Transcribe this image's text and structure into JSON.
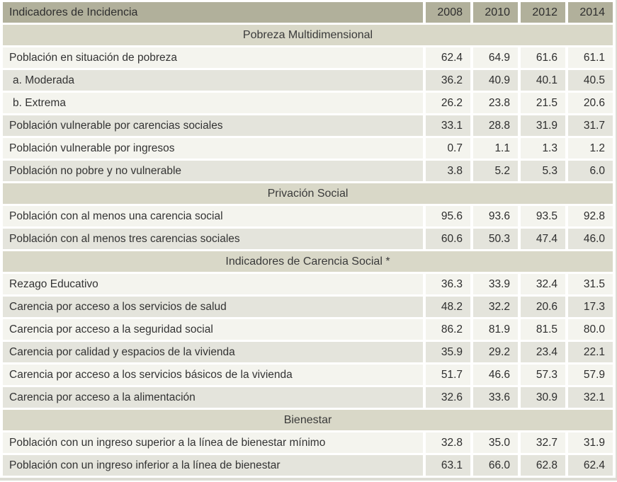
{
  "chart_data": {
    "type": "table",
    "title": "Indicadores de Incidencia",
    "columns": [
      "2008",
      "2010",
      "2012",
      "2014"
    ],
    "sections": [
      {
        "title": "Pobreza Multidimensional",
        "rows": [
          {
            "label": "Población en situación de pobreza",
            "indent": false,
            "values": [
              62.4,
              64.9,
              61.6,
              61.1
            ]
          },
          {
            "label": "a. Moderada",
            "indent": true,
            "values": [
              36.2,
              40.9,
              40.1,
              40.5
            ]
          },
          {
            "label": "b. Extrema",
            "indent": true,
            "values": [
              26.2,
              23.8,
              21.5,
              20.6
            ]
          },
          {
            "label": "Población vulnerable por carencias sociales",
            "indent": false,
            "values": [
              33.1,
              28.8,
              31.9,
              31.7
            ]
          },
          {
            "label": "Población vulnerable por ingresos",
            "indent": false,
            "values": [
              0.7,
              1.1,
              1.3,
              1.2
            ]
          },
          {
            "label": "Población no pobre y no vulnerable",
            "indent": false,
            "values": [
              3.8,
              5.2,
              5.3,
              6.0
            ]
          }
        ]
      },
      {
        "title": "Privación Social",
        "rows": [
          {
            "label": "Población con al menos una carencia social",
            "indent": false,
            "values": [
              95.6,
              93.6,
              93.5,
              92.8
            ]
          },
          {
            "label": "Población con al menos tres carencias sociales",
            "indent": false,
            "values": [
              60.6,
              50.3,
              47.4,
              46.0
            ]
          }
        ]
      },
      {
        "title": "Indicadores de Carencia Social *",
        "rows": [
          {
            "label": "Rezago Educativo",
            "indent": false,
            "values": [
              36.3,
              33.9,
              32.4,
              31.5
            ]
          },
          {
            "label": "Carencia por acceso a los servicios de salud",
            "indent": false,
            "values": [
              48.2,
              32.2,
              20.6,
              17.3
            ]
          },
          {
            "label": "Carencia por acceso a la seguridad social",
            "indent": false,
            "values": [
              86.2,
              81.9,
              81.5,
              80.0
            ]
          },
          {
            "label": "Carencia por calidad y espacios de la vivienda",
            "indent": false,
            "values": [
              35.9,
              29.2,
              23.4,
              22.1
            ]
          },
          {
            "label": "Carencia por acceso a los servicios básicos de la vivienda",
            "indent": false,
            "values": [
              51.7,
              46.6,
              57.3,
              57.9
            ]
          },
          {
            "label": "Carencia por acceso a la alimentación",
            "indent": false,
            "values": [
              32.6,
              33.6,
              30.9,
              32.1
            ]
          }
        ]
      },
      {
        "title": "Bienestar",
        "rows": [
          {
            "label": "Población con un ingreso superior a la línea de bienestar mínimo",
            "indent": false,
            "values": [
              32.8,
              35.0,
              32.7,
              31.9
            ]
          },
          {
            "label": "Población con un ingreso inferior a la línea de bienestar",
            "indent": false,
            "values": [
              63.1,
              66.0,
              62.8,
              62.4
            ]
          }
        ]
      }
    ],
    "value_format": "one_decimal",
    "layout": {
      "row_shading": "alternating restarts light after each section header",
      "separators": "white gridlines"
    }
  },
  "colors": {
    "header_bg": "#b1b09b",
    "section_bg": "#d9d8c8",
    "row_light": "#f4f4ee",
    "row_dark": "#e4e4dc",
    "edge": "#dcdcd4",
    "text": "#333333",
    "separator": "#ffffff"
  }
}
